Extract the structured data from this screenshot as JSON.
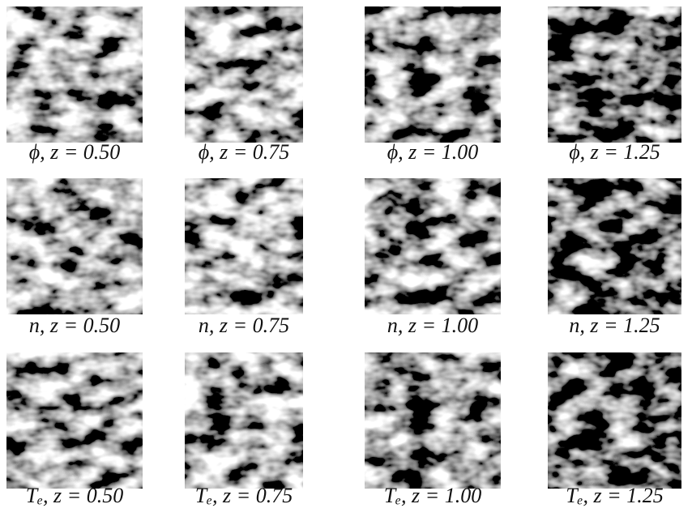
{
  "figure": {
    "panels": [
      [
        {
          "caption": "ϕ, z = 0.50"
        },
        {
          "caption": "ϕ, z = 0.75"
        },
        {
          "caption": "ϕ, z = 1.00"
        },
        {
          "caption": "ϕ, z = 1.25"
        }
      ],
      [
        {
          "caption": "n, z = 0.50"
        },
        {
          "caption": "n, z = 0.75"
        },
        {
          "caption": "n, z = 1.00"
        },
        {
          "caption": "n, z = 1.25"
        }
      ],
      [
        {
          "caption": "Tₑ, z = 0.50"
        },
        {
          "caption": "Tₑ, z = 0.75"
        },
        {
          "caption": "Tₑ, z = 1.00"
        },
        {
          "caption": "Tₑ, z = 1.25"
        }
      ]
    ]
  }
}
